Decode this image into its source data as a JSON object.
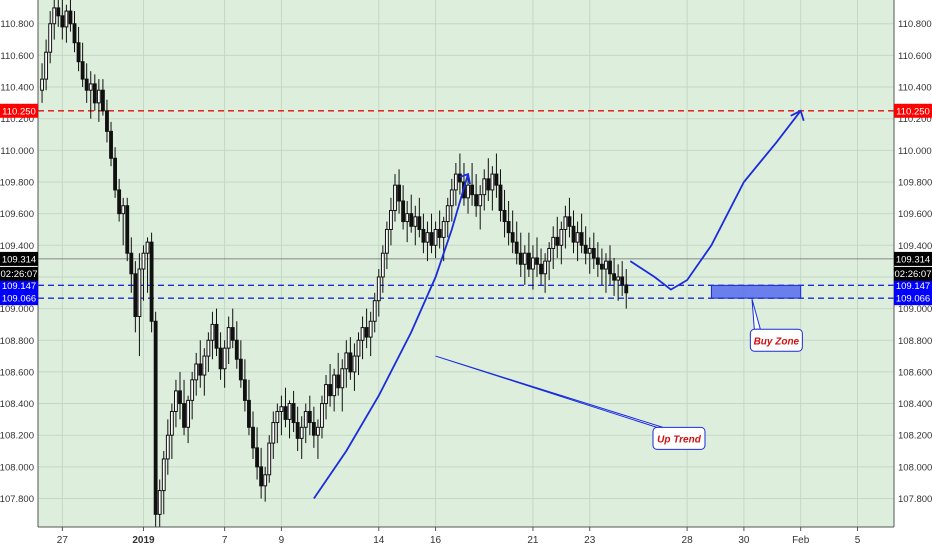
{
  "chart_data": {
    "type": "candlestick",
    "title": "",
    "ylim": [
      107.62,
      110.95
    ],
    "y_ticks": [
      {
        "value": 107.8,
        "label": "107.800"
      },
      {
        "value": 108.0,
        "label": "108.000"
      },
      {
        "value": 108.2,
        "label": "108.200"
      },
      {
        "value": 108.4,
        "label": "108.400"
      },
      {
        "value": 108.6,
        "label": "108.600"
      },
      {
        "value": 108.8,
        "label": "108.800"
      },
      {
        "value": 109.0,
        "label": "109.000"
      },
      {
        "value": 109.2,
        "label": "109.200"
      },
      {
        "value": 109.4,
        "label": "109.400"
      },
      {
        "value": 109.6,
        "label": "109.600"
      },
      {
        "value": 109.8,
        "label": "109.800"
      },
      {
        "value": 110.0,
        "label": "110.000"
      },
      {
        "value": 110.2,
        "label": "110.200"
      },
      {
        "value": 110.4,
        "label": "110.400"
      },
      {
        "value": 110.6,
        "label": "110.600"
      },
      {
        "value": 110.8,
        "label": "110.800"
      }
    ],
    "x_ticks": [
      {
        "x": 0.0,
        "label": "27",
        "bold": false
      },
      {
        "x": 1.0,
        "label": "2019",
        "bold": true
      },
      {
        "x": 2.0,
        "label": "7",
        "bold": false
      },
      {
        "x": 2.7,
        "label": "9",
        "bold": false
      },
      {
        "x": 3.9,
        "label": "14",
        "bold": false
      },
      {
        "x": 4.6,
        "label": "16",
        "bold": false
      },
      {
        "x": 5.8,
        "label": "21",
        "bold": false
      },
      {
        "x": 6.5,
        "label": "23",
        "bold": false
      },
      {
        "x": 7.7,
        "label": "28",
        "bold": false
      },
      {
        "x": 8.4,
        "label": "30",
        "bold": false
      },
      {
        "x": 9.1,
        "label": "Feb",
        "bold": false
      },
      {
        "x": 9.8,
        "label": "5",
        "bold": false
      }
    ],
    "xlim": [
      -0.3,
      10.25
    ],
    "grid": true,
    "candles": [
      [
        -0.25,
        110.38,
        110.55,
        110.3,
        110.45
      ],
      [
        -0.2,
        110.45,
        110.7,
        110.38,
        110.62
      ],
      [
        -0.15,
        110.62,
        110.88,
        110.55,
        110.8
      ],
      [
        -0.1,
        110.8,
        110.98,
        110.7,
        110.9
      ],
      [
        -0.05,
        110.9,
        110.98,
        110.78,
        110.85
      ],
      [
        0.0,
        110.85,
        110.95,
        110.7,
        110.78
      ],
      [
        0.05,
        110.78,
        110.92,
        110.68,
        110.88
      ],
      [
        0.1,
        110.88,
        110.96,
        110.75,
        110.8
      ],
      [
        0.15,
        110.8,
        110.88,
        110.62,
        110.68
      ],
      [
        0.2,
        110.68,
        110.78,
        110.5,
        110.56
      ],
      [
        0.25,
        110.56,
        110.68,
        110.4,
        110.45
      ],
      [
        0.3,
        110.45,
        110.55,
        110.3,
        110.38
      ],
      [
        0.35,
        110.38,
        110.5,
        110.2,
        110.42
      ],
      [
        0.4,
        110.42,
        110.48,
        110.25,
        110.3
      ],
      [
        0.45,
        110.3,
        110.45,
        110.18,
        110.38
      ],
      [
        0.5,
        110.38,
        110.45,
        110.22,
        110.25
      ],
      [
        0.55,
        110.25,
        110.32,
        110.05,
        110.12
      ],
      [
        0.6,
        110.12,
        110.18,
        109.9,
        109.95
      ],
      [
        0.65,
        109.95,
        110.02,
        109.7,
        109.75
      ],
      [
        0.7,
        109.75,
        109.82,
        109.55,
        109.6
      ],
      [
        0.75,
        109.6,
        109.7,
        109.4,
        109.65
      ],
      [
        0.8,
        109.65,
        109.7,
        109.3,
        109.35
      ],
      [
        0.85,
        109.35,
        109.45,
        109.1,
        109.22
      ],
      [
        0.9,
        109.22,
        109.3,
        108.85,
        108.95
      ],
      [
        0.95,
        108.95,
        109.35,
        108.7,
        109.25
      ],
      [
        1.0,
        109.25,
        109.4,
        109.05,
        109.35
      ],
      [
        1.05,
        109.35,
        109.45,
        109.1,
        109.42
      ],
      [
        1.1,
        109.42,
        109.48,
        108.85,
        108.92
      ],
      [
        1.15,
        108.92,
        108.98,
        107.62,
        107.7
      ],
      [
        1.2,
        107.7,
        107.92,
        107.62,
        107.85
      ],
      [
        1.25,
        107.85,
        108.1,
        107.7,
        108.05
      ],
      [
        1.3,
        108.05,
        108.3,
        107.95,
        108.2
      ],
      [
        1.35,
        108.2,
        108.4,
        108.05,
        108.35
      ],
      [
        1.4,
        108.35,
        108.55,
        108.25,
        108.48
      ],
      [
        1.45,
        108.48,
        108.6,
        108.3,
        108.4
      ],
      [
        1.5,
        108.4,
        108.55,
        108.2,
        108.25
      ],
      [
        1.55,
        108.25,
        108.45,
        108.15,
        108.42
      ],
      [
        1.6,
        108.42,
        108.6,
        108.3,
        108.55
      ],
      [
        1.65,
        108.55,
        108.72,
        108.45,
        108.65
      ],
      [
        1.7,
        108.65,
        108.8,
        108.5,
        108.58
      ],
      [
        1.75,
        108.58,
        108.75,
        108.45,
        108.7
      ],
      [
        1.8,
        108.7,
        108.85,
        108.6,
        108.8
      ],
      [
        1.85,
        108.8,
        108.98,
        108.68,
        108.9
      ],
      [
        1.9,
        108.9,
        109.0,
        108.7,
        108.75
      ],
      [
        1.95,
        108.75,
        108.85,
        108.55,
        108.62
      ],
      [
        2.0,
        108.62,
        108.8,
        108.5,
        108.75
      ],
      [
        2.05,
        108.75,
        108.95,
        108.65,
        108.88
      ],
      [
        2.1,
        108.88,
        109.0,
        108.75,
        108.8
      ],
      [
        2.15,
        108.8,
        108.92,
        108.62,
        108.68
      ],
      [
        2.2,
        108.68,
        108.8,
        108.5,
        108.55
      ],
      [
        2.25,
        108.55,
        108.68,
        108.35,
        108.42
      ],
      [
        2.3,
        108.42,
        108.55,
        108.2,
        108.25
      ],
      [
        2.35,
        108.25,
        108.35,
        108.05,
        108.12
      ],
      [
        2.4,
        108.12,
        108.25,
        107.92,
        108.0
      ],
      [
        2.45,
        108.0,
        108.12,
        107.8,
        107.88
      ],
      [
        2.5,
        107.88,
        108.0,
        107.78,
        107.95
      ],
      [
        2.55,
        107.95,
        108.2,
        107.9,
        108.15
      ],
      [
        2.6,
        108.15,
        108.35,
        108.05,
        108.28
      ],
      [
        2.65,
        108.28,
        108.4,
        108.15,
        108.35
      ],
      [
        2.7,
        108.35,
        108.45,
        108.2,
        108.38
      ],
      [
        2.75,
        108.38,
        108.5,
        108.25,
        108.3
      ],
      [
        2.8,
        108.3,
        108.42,
        108.18,
        108.4
      ],
      [
        2.85,
        108.4,
        108.48,
        108.22,
        108.28
      ],
      [
        2.9,
        108.28,
        108.38,
        108.1,
        108.18
      ],
      [
        2.95,
        108.18,
        108.32,
        108.05,
        108.25
      ],
      [
        3.0,
        108.25,
        108.4,
        108.15,
        108.35
      ],
      [
        3.05,
        108.35,
        108.45,
        108.2,
        108.28
      ],
      [
        3.1,
        108.28,
        108.38,
        108.12,
        108.2
      ],
      [
        3.15,
        108.2,
        108.3,
        108.05,
        108.25
      ],
      [
        3.2,
        108.25,
        108.45,
        108.18,
        108.4
      ],
      [
        3.25,
        108.4,
        108.58,
        108.3,
        108.52
      ],
      [
        3.3,
        108.52,
        108.65,
        108.38,
        108.45
      ],
      [
        3.35,
        108.45,
        108.62,
        108.35,
        108.58
      ],
      [
        3.4,
        108.58,
        108.72,
        108.45,
        108.5
      ],
      [
        3.45,
        108.5,
        108.68,
        108.35,
        108.62
      ],
      [
        3.5,
        108.62,
        108.8,
        108.5,
        108.72
      ],
      [
        3.55,
        108.72,
        108.82,
        108.55,
        108.6
      ],
      [
        3.6,
        108.6,
        108.78,
        108.48,
        108.7
      ],
      [
        3.65,
        108.7,
        108.85,
        108.58,
        108.8
      ],
      [
        3.7,
        108.8,
        108.95,
        108.68,
        108.88
      ],
      [
        3.75,
        108.88,
        109.0,
        108.75,
        108.82
      ],
      [
        3.8,
        108.82,
        108.98,
        108.7,
        108.92
      ],
      [
        3.85,
        108.92,
        109.1,
        108.85,
        109.05
      ],
      [
        3.9,
        109.05,
        109.25,
        108.95,
        109.2
      ],
      [
        3.95,
        109.2,
        109.4,
        109.1,
        109.35
      ],
      [
        4.0,
        109.35,
        109.55,
        109.25,
        109.5
      ],
      [
        4.05,
        109.5,
        109.7,
        109.4,
        109.62
      ],
      [
        4.1,
        109.62,
        109.85,
        109.55,
        109.78
      ],
      [
        4.15,
        109.78,
        109.88,
        109.6,
        109.68
      ],
      [
        4.2,
        109.68,
        109.78,
        109.5,
        109.55
      ],
      [
        4.25,
        109.55,
        109.68,
        109.42,
        109.6
      ],
      [
        4.3,
        109.6,
        109.72,
        109.48,
        109.52
      ],
      [
        4.35,
        109.52,
        109.65,
        109.4,
        109.58
      ],
      [
        4.4,
        109.58,
        109.7,
        109.45,
        109.5
      ],
      [
        4.45,
        109.5,
        109.6,
        109.35,
        109.42
      ],
      [
        4.5,
        109.42,
        109.55,
        109.3,
        109.48
      ],
      [
        4.55,
        109.48,
        109.6,
        109.35,
        109.4
      ],
      [
        4.6,
        109.4,
        109.55,
        109.32,
        109.5
      ],
      [
        4.65,
        109.5,
        109.62,
        109.38,
        109.45
      ],
      [
        4.7,
        109.45,
        109.58,
        109.3,
        109.55
      ],
      [
        4.75,
        109.55,
        109.7,
        109.45,
        109.65
      ],
      [
        4.8,
        109.65,
        109.82,
        109.55,
        109.75
      ],
      [
        4.85,
        109.75,
        109.92,
        109.65,
        109.85
      ],
      [
        4.9,
        109.85,
        109.98,
        109.72,
        109.8
      ],
      [
        4.95,
        109.8,
        109.92,
        109.65,
        109.7
      ],
      [
        5.0,
        109.7,
        109.85,
        109.6,
        109.78
      ],
      [
        5.05,
        109.78,
        109.92,
        109.65,
        109.72
      ],
      [
        5.1,
        109.72,
        109.85,
        109.58,
        109.65
      ],
      [
        5.15,
        109.65,
        109.78,
        109.5,
        109.72
      ],
      [
        5.2,
        109.72,
        109.88,
        109.62,
        109.82
      ],
      [
        5.25,
        109.82,
        109.95,
        109.68,
        109.75
      ],
      [
        5.3,
        109.75,
        109.9,
        109.62,
        109.85
      ],
      [
        5.35,
        109.85,
        109.98,
        109.7,
        109.78
      ],
      [
        5.4,
        109.78,
        109.88,
        109.55,
        109.62
      ],
      [
        5.45,
        109.62,
        109.75,
        109.45,
        109.55
      ],
      [
        5.5,
        109.55,
        109.68,
        109.4,
        109.48
      ],
      [
        5.55,
        109.48,
        109.62,
        109.35,
        109.42
      ],
      [
        5.6,
        109.42,
        109.55,
        109.28,
        109.35
      ],
      [
        5.65,
        109.35,
        109.48,
        109.2,
        109.28
      ],
      [
        5.7,
        109.28,
        109.4,
        109.15,
        109.35
      ],
      [
        5.75,
        109.35,
        109.48,
        109.2,
        109.25
      ],
      [
        5.8,
        109.25,
        109.4,
        109.12,
        109.32
      ],
      [
        5.85,
        109.32,
        109.45,
        109.2,
        109.28
      ],
      [
        5.9,
        109.28,
        109.38,
        109.15,
        109.22
      ],
      [
        5.95,
        109.22,
        109.35,
        109.1,
        109.3
      ],
      [
        6.0,
        109.3,
        109.42,
        109.18,
        109.38
      ],
      [
        6.05,
        109.38,
        109.52,
        109.25,
        109.45
      ],
      [
        6.1,
        109.45,
        109.58,
        109.32,
        109.4
      ],
      [
        6.15,
        109.4,
        109.55,
        109.28,
        109.5
      ],
      [
        6.2,
        109.5,
        109.65,
        109.38,
        109.58
      ],
      [
        6.25,
        109.58,
        109.7,
        109.45,
        109.52
      ],
      [
        6.3,
        109.52,
        109.62,
        109.35,
        109.42
      ],
      [
        6.35,
        109.42,
        109.55,
        109.3,
        109.48
      ],
      [
        6.4,
        109.48,
        109.6,
        109.35,
        109.4
      ],
      [
        6.45,
        109.4,
        109.52,
        109.28,
        109.35
      ],
      [
        6.5,
        109.35,
        109.45,
        109.22,
        109.38
      ],
      [
        6.55,
        109.38,
        109.48,
        109.25,
        109.32
      ],
      [
        6.6,
        109.32,
        109.42,
        109.2,
        109.28
      ],
      [
        6.65,
        109.28,
        109.38,
        109.15,
        109.25
      ],
      [
        6.7,
        109.25,
        109.35,
        109.1,
        109.3
      ],
      [
        6.75,
        109.3,
        109.4,
        109.15,
        109.22
      ],
      [
        6.8,
        109.22,
        109.32,
        109.08,
        109.18
      ],
      [
        6.85,
        109.18,
        109.28,
        109.05,
        109.2
      ],
      [
        6.9,
        109.2,
        109.3,
        109.08,
        109.15
      ],
      [
        6.95,
        109.15,
        109.25,
        109.0,
        109.1
      ]
    ],
    "levels": [
      {
        "value": 110.25,
        "label": "110.250",
        "color": "#e01010",
        "label_bg": "#ff0000"
      },
      {
        "value": 109.147,
        "label": "109.147",
        "color": "#1a2cdc",
        "label_bg": "#0000ff"
      },
      {
        "value": 109.066,
        "label": "109.066",
        "color": "#1a2cdc",
        "label_bg": "#0000ff"
      }
    ],
    "last_price": {
      "value": 109.314,
      "label": "109.314",
      "timer": "02:26:07",
      "label_bg": "#000000"
    },
    "zones": [
      {
        "name": "Buy Zone",
        "x0": 8.0,
        "x1": 9.1,
        "y0": 109.066,
        "y1": 109.147
      }
    ],
    "annotations": [
      {
        "text": "Up Trend",
        "callout_x": 7.6,
        "callout_y": 108.18
      },
      {
        "text": "Buy Zone",
        "callout_x": 8.8,
        "callout_y": 108.8
      }
    ],
    "up_path": [
      [
        3.1,
        107.8
      ],
      [
        3.5,
        108.1
      ],
      [
        3.9,
        108.45
      ],
      [
        4.3,
        108.85
      ],
      [
        4.6,
        109.2
      ],
      [
        4.8,
        109.5
      ],
      [
        5.0,
        109.85
      ]
    ],
    "projection_path": [
      [
        7.0,
        109.3
      ],
      [
        7.3,
        109.2
      ],
      [
        7.5,
        109.12
      ],
      [
        7.7,
        109.18
      ],
      [
        8.0,
        109.4
      ],
      [
        8.4,
        109.8
      ],
      [
        8.8,
        110.05
      ],
      [
        9.1,
        110.25
      ]
    ],
    "colors": {
      "background": "#ddeedd",
      "grid": "#c4d8c4",
      "candle": "#111111",
      "line": "#1a2cdc",
      "annotation_text": "#d01010"
    }
  }
}
